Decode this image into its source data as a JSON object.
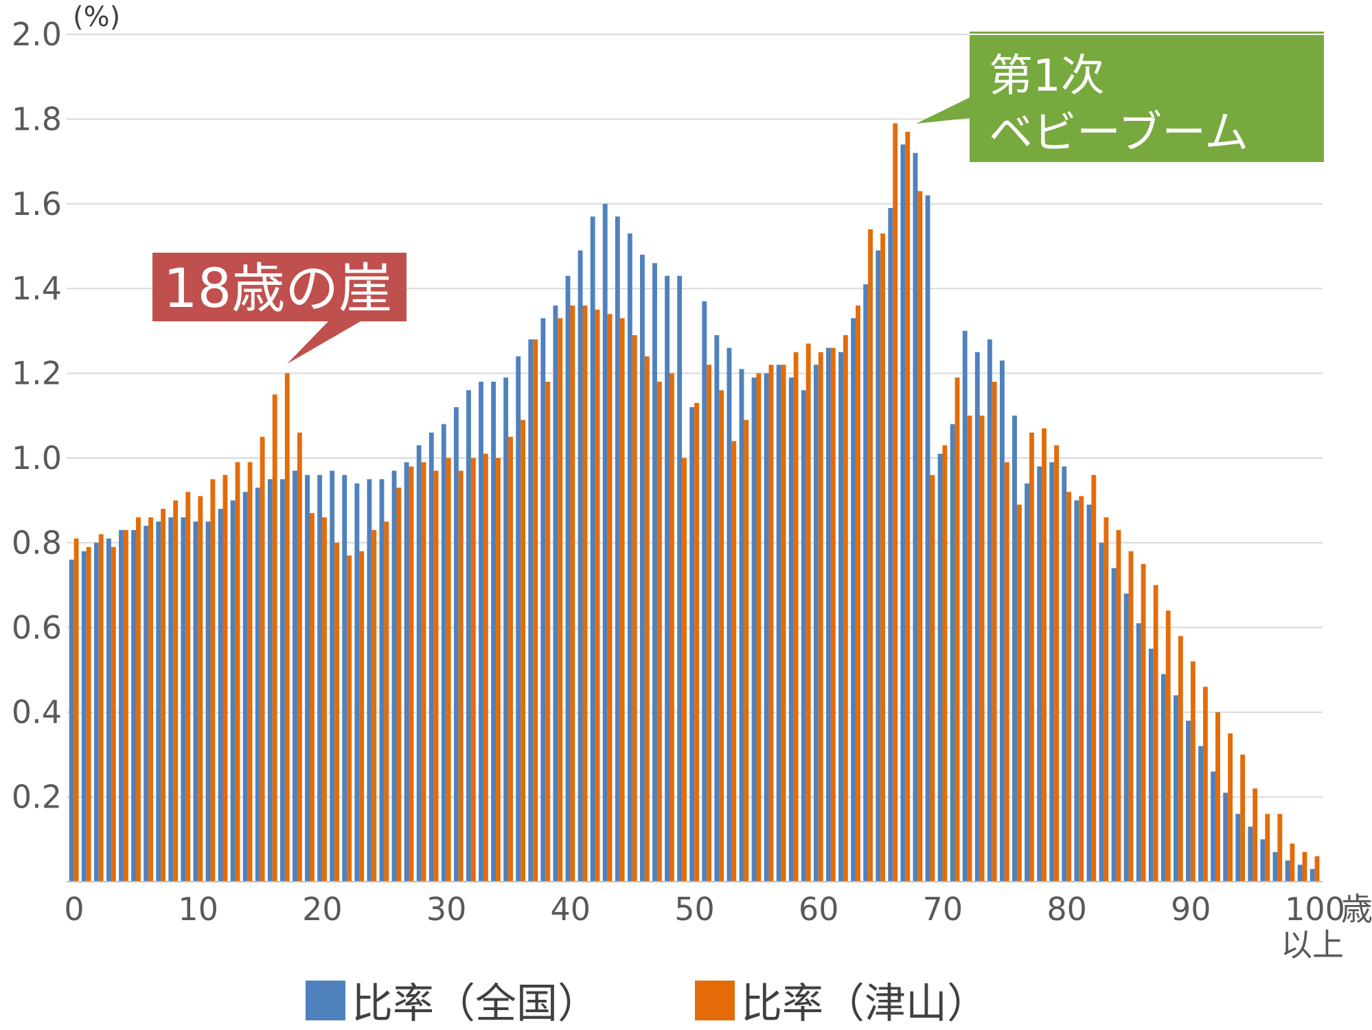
{
  "chart_data": {
    "type": "bar",
    "title": "",
    "ylabel": "",
    "unit_label": "(%)",
    "ylim": [
      0,
      2.0
    ],
    "y_ticks": [
      "0.2",
      "0.4",
      "0.6",
      "0.8",
      "1.0",
      "1.2",
      "1.4",
      "1.6",
      "1.8",
      "2.0"
    ],
    "x_tick_labels": [
      "0",
      "10",
      "20",
      "30",
      "40",
      "50",
      "60",
      "70",
      "80",
      "90",
      "100"
    ],
    "x_last_label_line1": "歳",
    "x_last_label_line2": "以上",
    "ages": [
      0,
      1,
      2,
      3,
      4,
      5,
      6,
      7,
      8,
      9,
      10,
      11,
      12,
      13,
      14,
      15,
      16,
      17,
      18,
      19,
      20,
      21,
      22,
      23,
      24,
      25,
      26,
      27,
      28,
      29,
      30,
      31,
      32,
      33,
      34,
      35,
      36,
      37,
      38,
      39,
      40,
      41,
      42,
      43,
      44,
      45,
      46,
      47,
      48,
      49,
      50,
      51,
      52,
      53,
      54,
      55,
      56,
      57,
      58,
      59,
      60,
      61,
      62,
      63,
      64,
      65,
      66,
      67,
      68,
      69,
      70,
      71,
      72,
      73,
      74,
      75,
      76,
      77,
      78,
      79,
      80,
      81,
      82,
      83,
      84,
      85,
      86,
      87,
      88,
      89,
      90,
      91,
      92,
      93,
      94,
      95,
      96,
      97,
      98,
      99,
      100
    ],
    "series": [
      {
        "name": "比率（全国）",
        "color": "#4f81bd",
        "values": [
          0.76,
          0.78,
          0.8,
          0.81,
          0.83,
          0.83,
          0.84,
          0.85,
          0.86,
          0.86,
          0.85,
          0.85,
          0.88,
          0.9,
          0.92,
          0.93,
          0.95,
          0.95,
          0.97,
          0.96,
          0.96,
          0.97,
          0.96,
          0.94,
          0.95,
          0.95,
          0.97,
          0.99,
          1.03,
          1.06,
          1.08,
          1.12,
          1.16,
          1.18,
          1.18,
          1.19,
          1.24,
          1.28,
          1.33,
          1.36,
          1.43,
          1.49,
          1.57,
          1.6,
          1.57,
          1.53,
          1.48,
          1.46,
          1.43,
          1.43,
          1.12,
          1.37,
          1.29,
          1.26,
          1.21,
          1.19,
          1.2,
          1.22,
          1.19,
          1.16,
          1.22,
          1.26,
          1.25,
          1.33,
          1.41,
          1.49,
          1.59,
          1.74,
          1.72,
          1.62,
          1.01,
          1.08,
          1.3,
          1.25,
          1.28,
          1.23,
          1.1,
          0.94,
          0.98,
          0.99,
          0.98,
          0.9,
          0.89,
          0.8,
          0.74,
          0.68,
          0.61,
          0.55,
          0.49,
          0.44,
          0.38,
          0.32,
          0.26,
          0.21,
          0.16,
          0.13,
          0.1,
          0.07,
          0.05,
          0.04,
          0.03
        ]
      },
      {
        "name": "比率（津山）",
        "color": "#e36c09",
        "values": [
          0.81,
          0.79,
          0.82,
          0.79,
          0.83,
          0.86,
          0.86,
          0.88,
          0.9,
          0.92,
          0.91,
          0.95,
          0.96,
          0.99,
          0.99,
          1.05,
          1.15,
          1.2,
          1.06,
          0.87,
          0.86,
          0.8,
          0.77,
          0.78,
          0.83,
          0.85,
          0.93,
          0.98,
          0.99,
          0.97,
          1.0,
          0.97,
          1.0,
          1.01,
          1.0,
          1.05,
          1.09,
          1.28,
          1.18,
          1.33,
          1.36,
          1.36,
          1.35,
          1.34,
          1.33,
          1.29,
          1.24,
          1.18,
          1.2,
          1.0,
          1.13,
          1.22,
          1.16,
          1.04,
          1.09,
          1.2,
          1.22,
          1.22,
          1.25,
          1.27,
          1.25,
          1.26,
          1.29,
          1.36,
          1.54,
          1.53,
          1.79,
          1.77,
          1.63,
          0.96,
          1.03,
          1.19,
          1.1,
          1.1,
          1.18,
          0.99,
          0.89,
          1.06,
          1.07,
          1.03,
          0.92,
          0.91,
          0.96,
          0.86,
          0.83,
          0.78,
          0.75,
          0.7,
          0.64,
          0.58,
          0.52,
          0.46,
          0.4,
          0.35,
          0.3,
          0.22,
          0.16,
          0.16,
          0.09,
          0.07,
          0.06
        ]
      }
    ],
    "annotations": [
      {
        "text": "18歳の崖",
        "color": "#c0504d"
      },
      {
        "text_line1": "第1次",
        "text_line2": "ベビーブーム",
        "color": "#77a93e"
      }
    ],
    "legend": [
      "比率（全国）",
      "比率（津山）"
    ],
    "grid": true
  }
}
